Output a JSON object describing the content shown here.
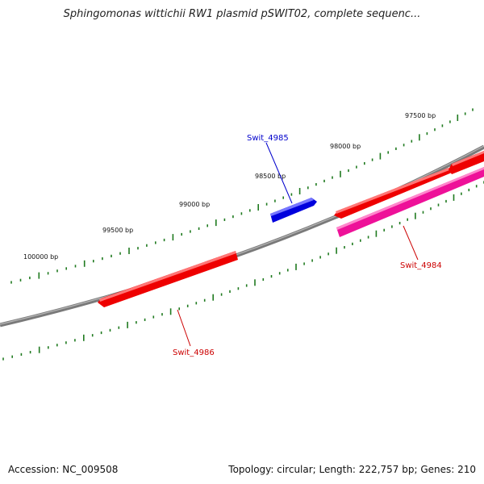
{
  "title": "Sphingomonas wittichii RW1 plasmid pSWIT02, complete sequenc...",
  "accession_label": "Accession: NC_009508",
  "summary_label": "Topology: circular; Length: 222,757 bp; Genes: 210",
  "colors": {
    "backbone": "#7a7a7a",
    "tick": "#1f7a1f",
    "gene_red": "#ee0000",
    "gene_blue": "#0000dd",
    "gene_pink": "#ee1199",
    "label_red": "#cc0000",
    "label_blue": "#0000cc"
  },
  "tick_labels": [
    {
      "text": "97500 bp"
    },
    {
      "text": "98000 bp"
    },
    {
      "text": "98500 bp"
    },
    {
      "text": "99000 bp"
    },
    {
      "text": "99500 bp"
    },
    {
      "text": "100000 bp"
    }
  ],
  "genes": [
    {
      "name": "Swit_4984",
      "color": "pink",
      "strand": "reverse"
    },
    {
      "name": "Swit_4985",
      "color": "blue",
      "strand": "forward"
    },
    {
      "name": "Swit_4986",
      "color": "red",
      "strand": "reverse"
    }
  ]
}
